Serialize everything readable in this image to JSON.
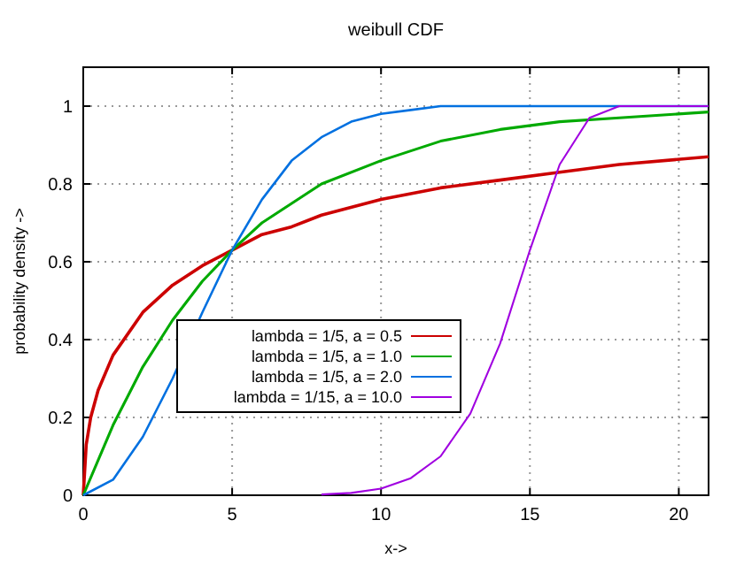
{
  "chart_data": {
    "type": "line",
    "title": "weibull CDF",
    "xlabel": "x->",
    "ylabel": "probability density ->",
    "xlim": [
      0,
      21
    ],
    "ylim": [
      0,
      1.1
    ],
    "xticks": [
      0,
      5,
      10,
      15,
      20
    ],
    "yticks": [
      0,
      0.2,
      0.4,
      0.6,
      0.8,
      1
    ],
    "grid": true,
    "legend": "center",
    "marker": "none",
    "line_style": "solid",
    "series": [
      {
        "name": "lambda = 1/5, a = 0.5",
        "color": "#cc0000",
        "x": [
          0,
          0.1,
          0.25,
          0.5,
          1,
          2,
          3,
          4,
          5,
          6,
          7,
          8,
          10,
          12,
          14,
          16,
          18,
          21
        ],
        "values": [
          0,
          0.13,
          0.2,
          0.27,
          0.36,
          0.47,
          0.54,
          0.59,
          0.63,
          0.67,
          0.69,
          0.72,
          0.76,
          0.79,
          0.81,
          0.83,
          0.85,
          0.87
        ]
      },
      {
        "name": "lambda = 1/5, a = 1.0",
        "color": "#00aa00",
        "x": [
          0,
          1,
          2,
          3,
          4,
          5,
          6,
          7,
          8,
          10,
          12,
          14,
          16,
          18,
          21
        ],
        "values": [
          0,
          0.18,
          0.33,
          0.45,
          0.55,
          0.63,
          0.7,
          0.75,
          0.8,
          0.86,
          0.91,
          0.94,
          0.96,
          0.97,
          0.985
        ]
      },
      {
        "name": "lambda = 1/5, a = 2.0",
        "color": "#0070e0",
        "x": [
          0,
          1,
          2,
          3,
          4,
          5,
          6,
          7,
          8,
          9,
          10,
          11,
          12,
          21
        ],
        "values": [
          0,
          0.04,
          0.15,
          0.3,
          0.47,
          0.63,
          0.76,
          0.86,
          0.92,
          0.96,
          0.98,
          0.99,
          1,
          1
        ]
      },
      {
        "name": "lambda = 1/15, a = 10.0",
        "color": "#a000e0",
        "x": [
          8,
          9,
          10,
          11,
          12,
          13,
          14,
          15,
          16,
          17,
          18,
          21
        ],
        "values": [
          0.002,
          0.006,
          0.017,
          0.044,
          0.1,
          0.21,
          0.39,
          0.63,
          0.85,
          0.97,
          1,
          1
        ]
      }
    ]
  }
}
